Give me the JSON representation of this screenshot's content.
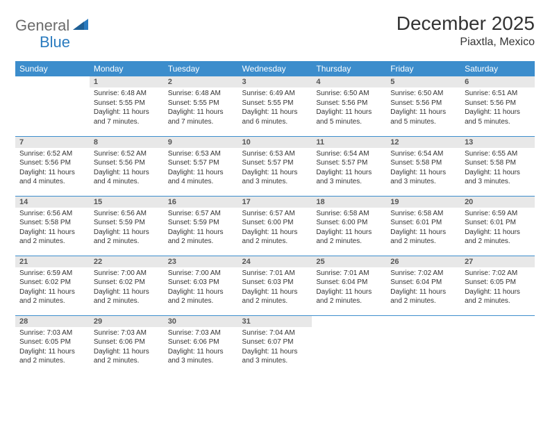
{
  "brand": {
    "name1": "General",
    "name2": "Blue"
  },
  "title": "December 2025",
  "location": "Piaxtla, Mexico",
  "colors": {
    "header_bg": "#3c8dcc",
    "header_text": "#ffffff",
    "daynum_bg": "#e8e8e8",
    "body_text": "#333333",
    "logo_gray": "#6b6b6b",
    "logo_blue": "#2a7bbf",
    "row_border": "#3c8dcc"
  },
  "daysOfWeek": [
    "Sunday",
    "Monday",
    "Tuesday",
    "Wednesday",
    "Thursday",
    "Friday",
    "Saturday"
  ],
  "weeks": [
    [
      null,
      {
        "n": "1",
        "sr": "6:48 AM",
        "ss": "5:55 PM",
        "dl": "11 hours and 7 minutes."
      },
      {
        "n": "2",
        "sr": "6:48 AM",
        "ss": "5:55 PM",
        "dl": "11 hours and 7 minutes."
      },
      {
        "n": "3",
        "sr": "6:49 AM",
        "ss": "5:55 PM",
        "dl": "11 hours and 6 minutes."
      },
      {
        "n": "4",
        "sr": "6:50 AM",
        "ss": "5:56 PM",
        "dl": "11 hours and 5 minutes."
      },
      {
        "n": "5",
        "sr": "6:50 AM",
        "ss": "5:56 PM",
        "dl": "11 hours and 5 minutes."
      },
      {
        "n": "6",
        "sr": "6:51 AM",
        "ss": "5:56 PM",
        "dl": "11 hours and 5 minutes."
      }
    ],
    [
      {
        "n": "7",
        "sr": "6:52 AM",
        "ss": "5:56 PM",
        "dl": "11 hours and 4 minutes."
      },
      {
        "n": "8",
        "sr": "6:52 AM",
        "ss": "5:56 PM",
        "dl": "11 hours and 4 minutes."
      },
      {
        "n": "9",
        "sr": "6:53 AM",
        "ss": "5:57 PM",
        "dl": "11 hours and 4 minutes."
      },
      {
        "n": "10",
        "sr": "6:53 AM",
        "ss": "5:57 PM",
        "dl": "11 hours and 3 minutes."
      },
      {
        "n": "11",
        "sr": "6:54 AM",
        "ss": "5:57 PM",
        "dl": "11 hours and 3 minutes."
      },
      {
        "n": "12",
        "sr": "6:54 AM",
        "ss": "5:58 PM",
        "dl": "11 hours and 3 minutes."
      },
      {
        "n": "13",
        "sr": "6:55 AM",
        "ss": "5:58 PM",
        "dl": "11 hours and 3 minutes."
      }
    ],
    [
      {
        "n": "14",
        "sr": "6:56 AM",
        "ss": "5:58 PM",
        "dl": "11 hours and 2 minutes."
      },
      {
        "n": "15",
        "sr": "6:56 AM",
        "ss": "5:59 PM",
        "dl": "11 hours and 2 minutes."
      },
      {
        "n": "16",
        "sr": "6:57 AM",
        "ss": "5:59 PM",
        "dl": "11 hours and 2 minutes."
      },
      {
        "n": "17",
        "sr": "6:57 AM",
        "ss": "6:00 PM",
        "dl": "11 hours and 2 minutes."
      },
      {
        "n": "18",
        "sr": "6:58 AM",
        "ss": "6:00 PM",
        "dl": "11 hours and 2 minutes."
      },
      {
        "n": "19",
        "sr": "6:58 AM",
        "ss": "6:01 PM",
        "dl": "11 hours and 2 minutes."
      },
      {
        "n": "20",
        "sr": "6:59 AM",
        "ss": "6:01 PM",
        "dl": "11 hours and 2 minutes."
      }
    ],
    [
      {
        "n": "21",
        "sr": "6:59 AM",
        "ss": "6:02 PM",
        "dl": "11 hours and 2 minutes."
      },
      {
        "n": "22",
        "sr": "7:00 AM",
        "ss": "6:02 PM",
        "dl": "11 hours and 2 minutes."
      },
      {
        "n": "23",
        "sr": "7:00 AM",
        "ss": "6:03 PM",
        "dl": "11 hours and 2 minutes."
      },
      {
        "n": "24",
        "sr": "7:01 AM",
        "ss": "6:03 PM",
        "dl": "11 hours and 2 minutes."
      },
      {
        "n": "25",
        "sr": "7:01 AM",
        "ss": "6:04 PM",
        "dl": "11 hours and 2 minutes."
      },
      {
        "n": "26",
        "sr": "7:02 AM",
        "ss": "6:04 PM",
        "dl": "11 hours and 2 minutes."
      },
      {
        "n": "27",
        "sr": "7:02 AM",
        "ss": "6:05 PM",
        "dl": "11 hours and 2 minutes."
      }
    ],
    [
      {
        "n": "28",
        "sr": "7:03 AM",
        "ss": "6:05 PM",
        "dl": "11 hours and 2 minutes."
      },
      {
        "n": "29",
        "sr": "7:03 AM",
        "ss": "6:06 PM",
        "dl": "11 hours and 2 minutes."
      },
      {
        "n": "30",
        "sr": "7:03 AM",
        "ss": "6:06 PM",
        "dl": "11 hours and 3 minutes."
      },
      {
        "n": "31",
        "sr": "7:04 AM",
        "ss": "6:07 PM",
        "dl": "11 hours and 3 minutes."
      },
      null,
      null,
      null
    ]
  ]
}
